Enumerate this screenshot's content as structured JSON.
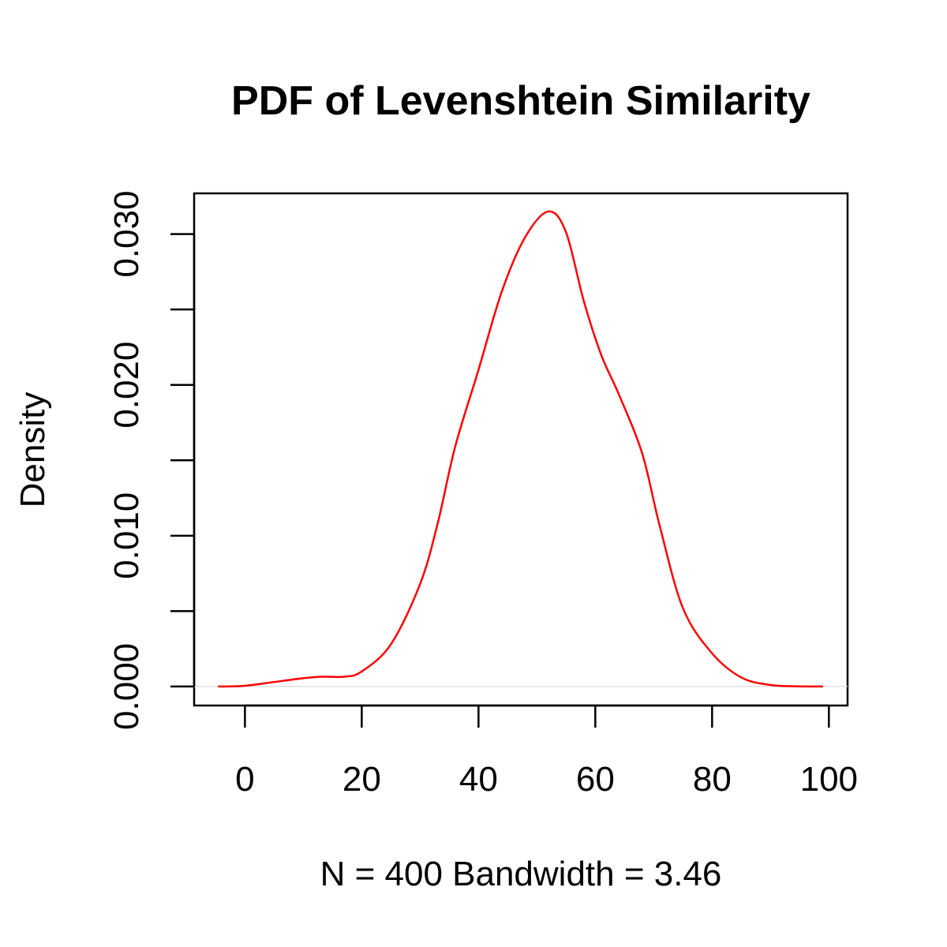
{
  "chart_data": {
    "type": "line",
    "title": "PDF of Levenshtein Similarity",
    "xlabel": "N = 400   Bandwidth = 3.46",
    "ylabel": "Density",
    "xlim": [
      -8.7,
      103.2
    ],
    "ylim": [
      -0.00126,
      0.0327
    ],
    "x_ticks": [
      0,
      20,
      40,
      60,
      80,
      100
    ],
    "y_ticks": [
      0.0,
      0.005,
      0.01,
      0.015,
      0.02,
      0.025,
      0.03
    ],
    "y_tick_labels": {
      "0": "0.000",
      "0.01": "0.010",
      "0.02": "0.020",
      "0.03": "0.030"
    },
    "grid": false,
    "zero_line": true,
    "series": [
      {
        "color": "#ff0000",
        "x": [
          -4.6,
          0,
          5,
          10,
          13,
          17,
          20,
          25,
          30,
          33,
          36,
          40,
          44,
          48,
          52,
          55,
          58,
          61,
          64,
          68,
          71,
          75,
          80,
          85,
          90,
          95,
          99
        ],
        "y": [
          0.0,
          5e-05,
          0.0003,
          0.00055,
          0.00065,
          0.00065,
          0.001,
          0.0028,
          0.0068,
          0.0108,
          0.0159,
          0.021,
          0.0262,
          0.0298,
          0.0315,
          0.0301,
          0.0256,
          0.022,
          0.0194,
          0.0155,
          0.0107,
          0.0052,
          0.0022,
          0.0006,
          0.0001,
          1e-05,
          0.0
        ]
      }
    ]
  }
}
